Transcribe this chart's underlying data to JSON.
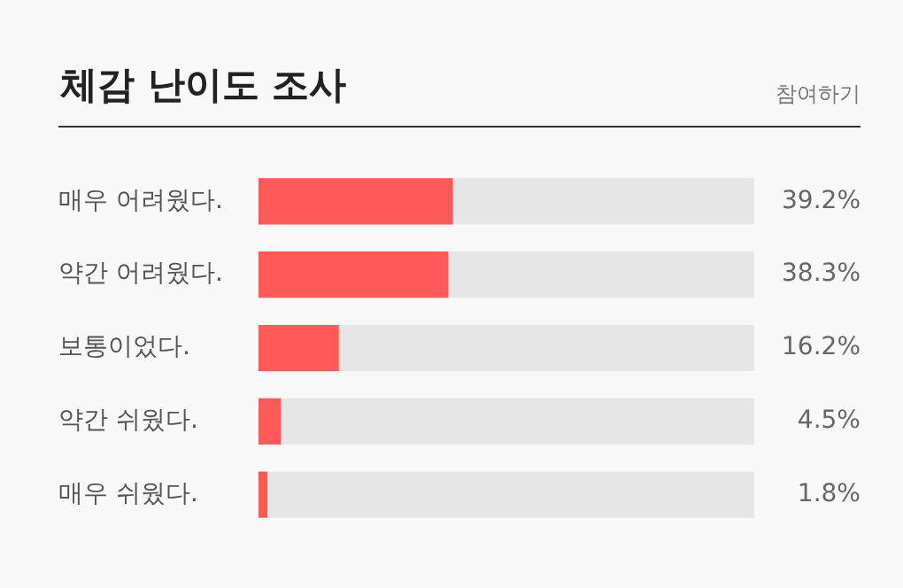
{
  "chart_data": {
    "type": "bar",
    "orientation": "horizontal",
    "title": "체감 난이도 조사",
    "annotations": [
      "참여하기"
    ],
    "categories": [
      "매우 어려웠다.",
      "약간 어려웠다.",
      "보통이었다.",
      "약간 쉬웠다.",
      "매우 쉬웠다."
    ],
    "values": [
      39.2,
      38.3,
      16.2,
      4.5,
      1.8
    ],
    "value_labels": [
      "39.2%",
      "38.3%",
      "16.2%",
      "4.5%",
      "1.8%"
    ],
    "color": "#ff5a5a",
    "xlim": [
      0,
      100
    ],
    "legend": false
  }
}
